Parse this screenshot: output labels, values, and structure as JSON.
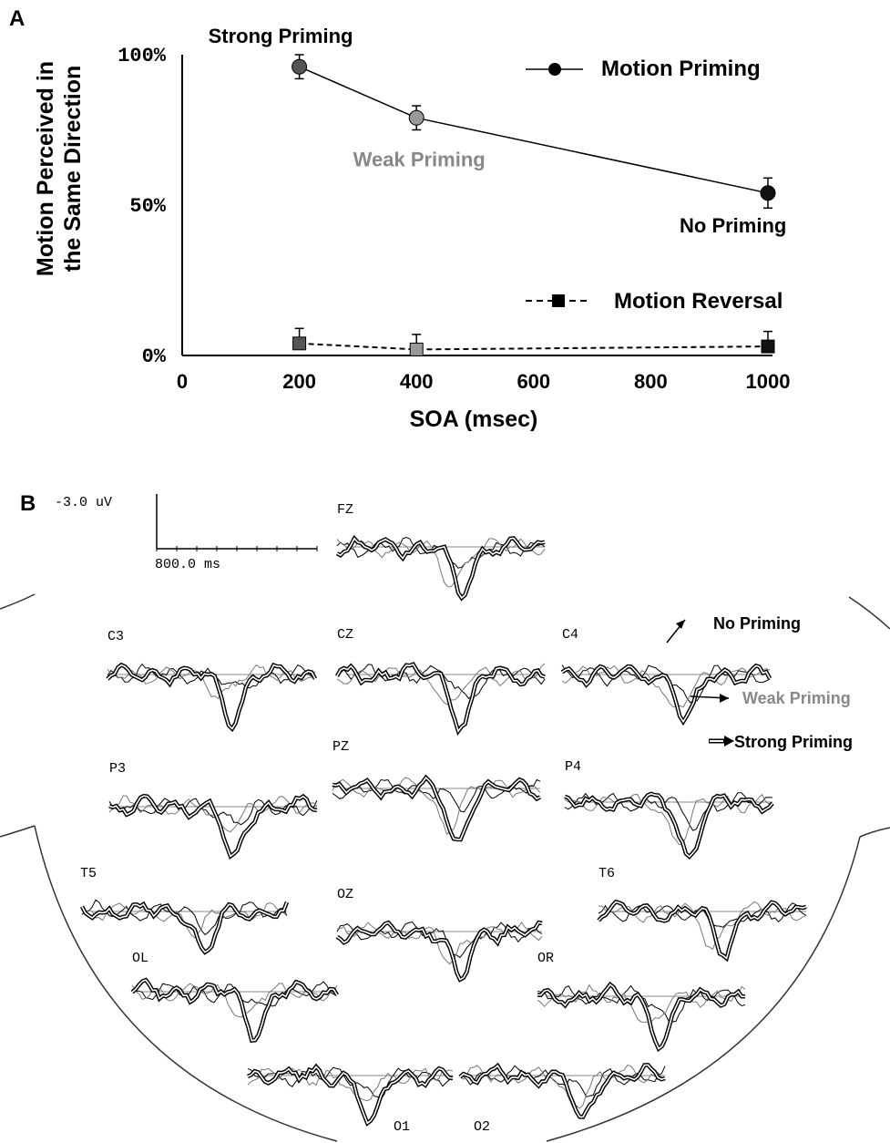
{
  "chart_data": [
    {
      "panel": "A",
      "type": "line",
      "xlabel": "SOA (msec)",
      "ylabel": [
        "Motion Perceived in",
        "the Same Direction"
      ],
      "xlim": [
        0,
        1000
      ],
      "ylim": [
        0,
        100
      ],
      "x_ticks": [
        0,
        200,
        400,
        600,
        800,
        1000
      ],
      "y_ticks": [
        {
          "value": 0,
          "label": "0%"
        },
        {
          "value": 50,
          "label": "50%"
        },
        {
          "value": 100,
          "label": "100%"
        }
      ],
      "x": [
        200,
        400,
        1000
      ],
      "series": [
        {
          "name": "Motion Priming",
          "marker": "circle",
          "line": "solid",
          "values": [
            96,
            79,
            54
          ],
          "errors": [
            4,
            4,
            5
          ],
          "point_colors": [
            "#555555",
            "#999999",
            "#111111"
          ]
        },
        {
          "name": "Motion Reversal",
          "marker": "square",
          "line": "dashed",
          "values": [
            4,
            2,
            3
          ],
          "errors": [
            5,
            5,
            5
          ],
          "point_colors": [
            "#555555",
            "#999999",
            "#111111"
          ]
        }
      ],
      "point_annotations": [
        {
          "text": "Strong Priming",
          "series": 0,
          "index": 0,
          "color": "#000000"
        },
        {
          "text": "Weak Priming",
          "series": 0,
          "index": 1,
          "color": "#888888"
        },
        {
          "text": "No Priming",
          "series": 0,
          "index": 2,
          "color": "#000000"
        }
      ],
      "legend": "right"
    },
    {
      "panel": "B",
      "type": "line",
      "scale": {
        "amplitude": "-3.0 uV",
        "time": "800.0 ms"
      },
      "conditions": [
        {
          "name": "No Priming",
          "style": "thin",
          "color": "#000000"
        },
        {
          "name": "Weak Priming",
          "style": "thin",
          "color": "#888888"
        },
        {
          "name": "Strong Priming",
          "style": "double",
          "color": "#000000"
        }
      ],
      "electrodes": [
        {
          "label": "FZ",
          "dip": [
            0.65,
            0.85,
            0.45
          ]
        },
        {
          "label": "C3",
          "dip": [
            0.35,
            0.8,
            0.3
          ]
        },
        {
          "label": "CZ",
          "dip": [
            0.6,
            0.9,
            0.4
          ]
        },
        {
          "label": "C4",
          "dip": [
            0.75,
            0.85,
            0.45
          ]
        },
        {
          "label": "P3",
          "dip": [
            0.4,
            1.0,
            0.3
          ]
        },
        {
          "label": "PZ",
          "dip": [
            0.7,
            1.0,
            0.4
          ]
        },
        {
          "label": "P4",
          "dip": [
            0.7,
            1.0,
            0.4
          ]
        },
        {
          "label": "T5",
          "dip": [
            0.45,
            0.75,
            0.3
          ]
        },
        {
          "label": "OZ",
          "dip": [
            0.55,
            0.85,
            0.4
          ]
        },
        {
          "label": "T6",
          "dip": [
            0.6,
            0.75,
            0.35
          ]
        },
        {
          "label": "OL",
          "dip": [
            0.45,
            0.75,
            0.3
          ]
        },
        {
          "label": "OR",
          "dip": [
            0.6,
            0.85,
            0.4
          ]
        },
        {
          "label": "O1",
          "dip": [
            0.55,
            0.9,
            0.35
          ]
        },
        {
          "label": "O2",
          "dip": [
            0.55,
            0.85,
            0.35
          ]
        }
      ]
    }
  ],
  "panel_labels": {
    "a": "A",
    "b": "B"
  }
}
